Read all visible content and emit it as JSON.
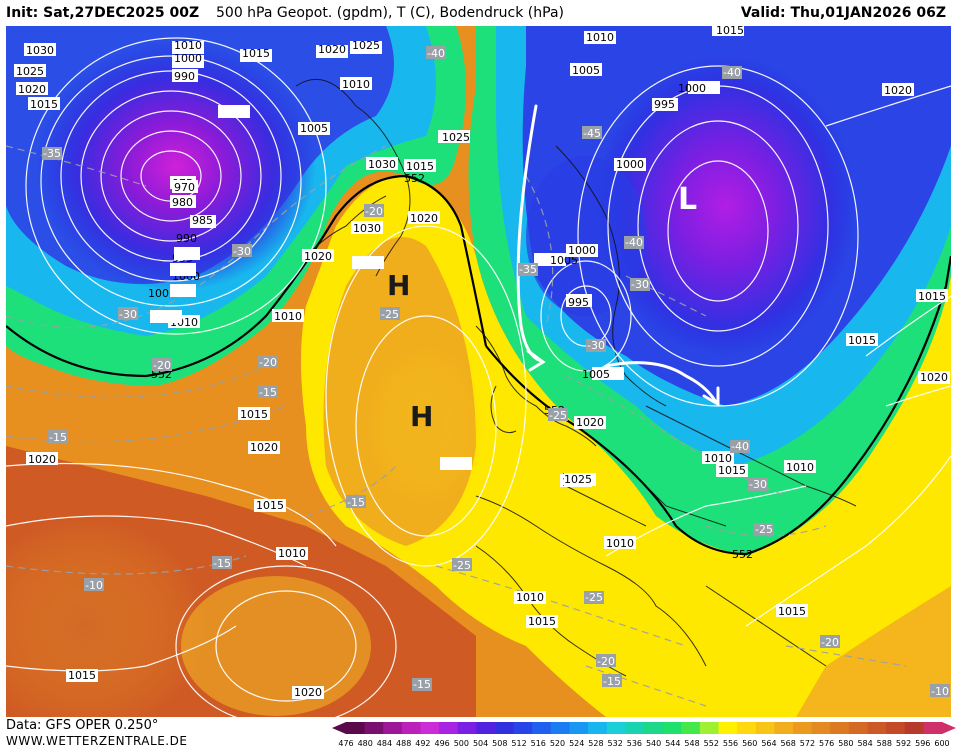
{
  "header": {
    "init": "Init: Sat,27DEC2025 00Z",
    "title": "500 hPa Geopot. (gpdm), T (C), Bodendruck (hPa)",
    "valid": "Valid: Thu,01JAN2026 06Z"
  },
  "footer": {
    "data_source": "Data: GFS OPER 0.250°",
    "website": "WWW.WETTERZENTRALE.DE"
  },
  "colors": {
    "violet": "#8a1bd8",
    "blue": "#2430e0",
    "cyan": "#18b8ee",
    "green": "#1ee07a",
    "yellow": "#ffe800",
    "orange": "#f0a21a",
    "red": "#cf5a24"
  },
  "map": {
    "pressure_systems": [
      {
        "label": "H",
        "kind": "high"
      },
      {
        "label": "H",
        "kind": "high"
      },
      {
        "label": "L",
        "kind": "low"
      }
    ],
    "isobar_labels": [
      "1030",
      "1025",
      "1020",
      "1015",
      "1010",
      "1005",
      "1000",
      "995",
      "990",
      "985",
      "980",
      "975",
      "970",
      "1010",
      "1000",
      "990",
      "1015",
      "1020",
      "1025",
      "1015",
      "1010",
      "1005",
      "1025",
      "1030",
      "1020",
      "1030",
      "1015",
      "1020",
      "1010",
      "1005",
      "1000",
      "995",
      "1005",
      "1010",
      "1015",
      "1020",
      "1025",
      "1030",
      "1020",
      "1015",
      "1020",
      "1015",
      "1010",
      "1020",
      "1015",
      "1020",
      "1010",
      "1015",
      "1010",
      "1000",
      "1000",
      "1005",
      "995",
      "1000",
      "1015",
      "1025",
      "1015",
      "1015",
      "1010",
      "1010",
      "1015",
      "1020"
    ],
    "temp_labels": [
      "-35",
      "-30",
      "-30",
      "-20",
      "-15",
      "-15",
      "-10",
      "-40",
      "-20",
      "-25",
      "-15",
      "-25",
      "-15",
      "-45",
      "-40",
      "-35",
      "-40",
      "-30",
      "-40",
      "-30",
      "-25",
      "-25",
      "-20",
      "-15",
      "-15",
      "-20",
      "-25",
      "-20",
      "-10",
      "-30"
    ],
    "height_labels": [
      "552",
      "552",
      "552",
      "552"
    ]
  },
  "scale": {
    "ticks": [
      "476",
      "480",
      "484",
      "488",
      "492",
      "496",
      "500",
      "504",
      "508",
      "512",
      "516",
      "520",
      "524",
      "528",
      "532",
      "536",
      "540",
      "544",
      "548",
      "552",
      "556",
      "560",
      "564",
      "568",
      "572",
      "576",
      "580",
      "584",
      "588",
      "592",
      "596",
      "600"
    ],
    "colors": [
      "#5a0a4a",
      "#7a0f70",
      "#9c1898",
      "#bb20bb",
      "#cc2cd6",
      "#a823e4",
      "#7b1fe4",
      "#5022e0",
      "#3030e0",
      "#2844e8",
      "#2060ef",
      "#1c7cf2",
      "#1898f2",
      "#18b6ee",
      "#1ccfd8",
      "#1ad4b0",
      "#1cd888",
      "#1ee06c",
      "#44e84a",
      "#9ef030",
      "#fff000",
      "#ffd810",
      "#f8c416",
      "#f2ae1c",
      "#eb9a1e",
      "#e38a22",
      "#dc7a22",
      "#d46a24",
      "#cc5a26",
      "#c44a28",
      "#b83a2a",
      "#d0306a"
    ]
  }
}
